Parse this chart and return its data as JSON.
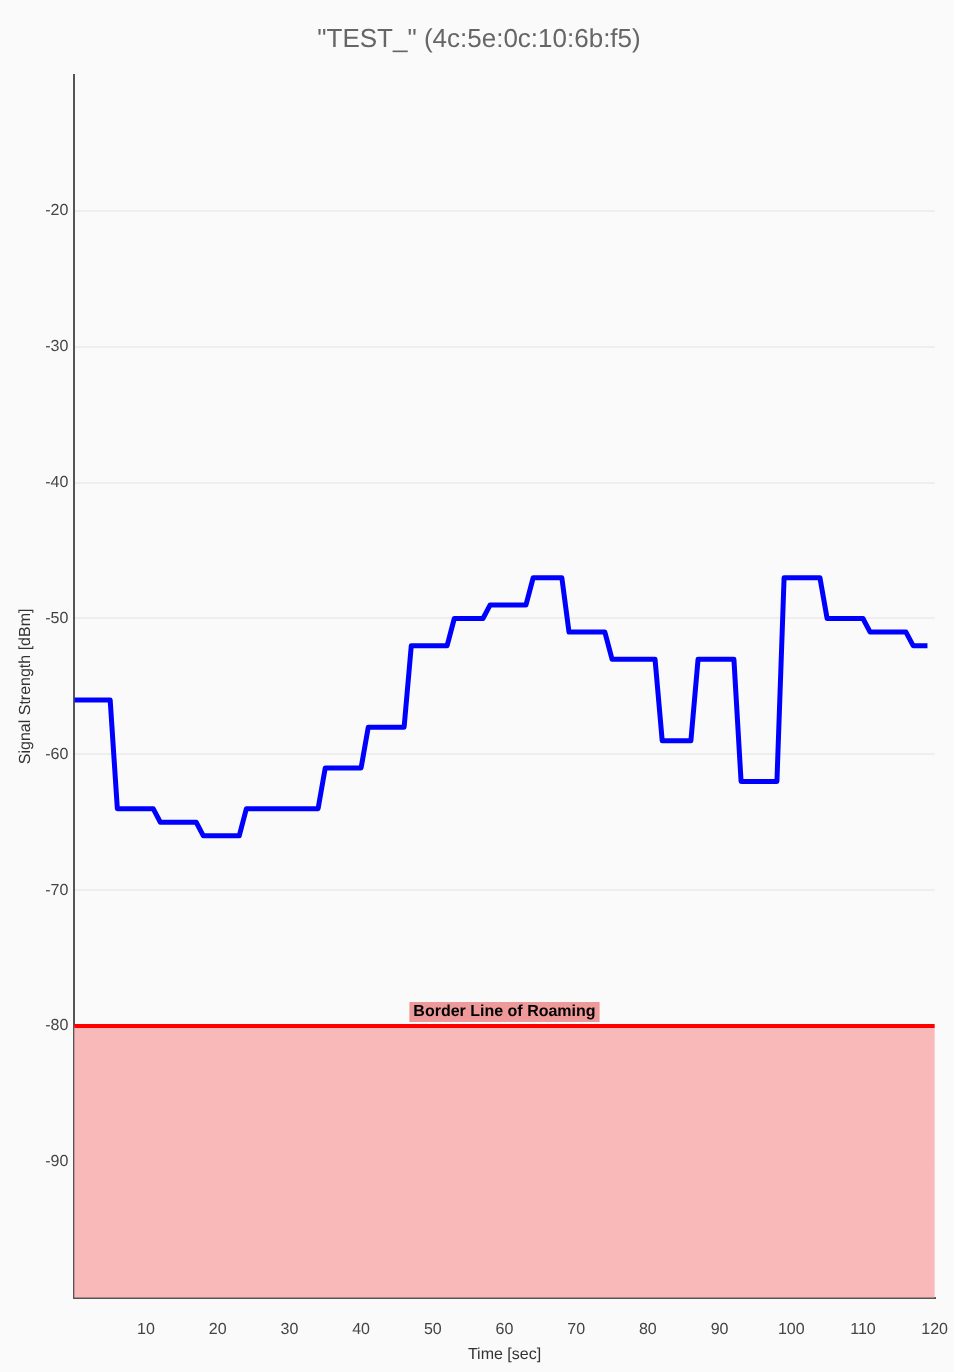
{
  "chart_data": {
    "type": "line",
    "title": "\"TEST_\" (4c:5e:0c:10:6b:f5)",
    "xlabel": "Time [sec]",
    "ylabel": "Signal Strength [dBm]",
    "x": [
      0,
      5,
      6,
      11,
      12,
      17,
      18,
      23,
      24,
      34,
      35,
      40,
      41,
      46,
      47,
      52,
      53,
      57,
      58,
      63,
      64,
      68,
      69,
      74,
      75,
      81,
      82,
      86,
      87,
      92,
      93,
      98,
      99,
      104,
      105,
      110,
      111,
      116,
      117,
      119
    ],
    "series": [
      {
        "color": "#0000ff",
        "values": [
          -56,
          -56,
          -64,
          -64,
          -65,
          -65,
          -66,
          -66,
          -64,
          -64,
          -61,
          -61,
          -58,
          -58,
          -52,
          -52,
          -50,
          -50,
          -49,
          -49,
          -47,
          -47,
          -51,
          -51,
          -53,
          -53,
          -59,
          -59,
          -53,
          -53,
          -62,
          -62,
          -47,
          -47,
          -50,
          -50,
          -51,
          -51,
          -52,
          -52
        ]
      }
    ],
    "xlim": [
      0,
      120
    ],
    "xticks": [
      10,
      20,
      30,
      40,
      50,
      60,
      70,
      80,
      90,
      100,
      110,
      120
    ],
    "ylim": [
      -100,
      -10
    ],
    "yticks": [
      -90,
      -80,
      -70,
      -60,
      -50,
      -40,
      -30,
      -20
    ],
    "ref_lines": [
      {
        "axis": "y",
        "value": -80,
        "label": "Border Line of Roaming",
        "color": "#ff0000"
      }
    ],
    "bands": [
      {
        "axis": "y",
        "from": -100,
        "to": -80,
        "color": "#f9b9b9"
      }
    ],
    "grid": "y",
    "legend": false,
    "marker": "none",
    "line_style": "solid"
  }
}
